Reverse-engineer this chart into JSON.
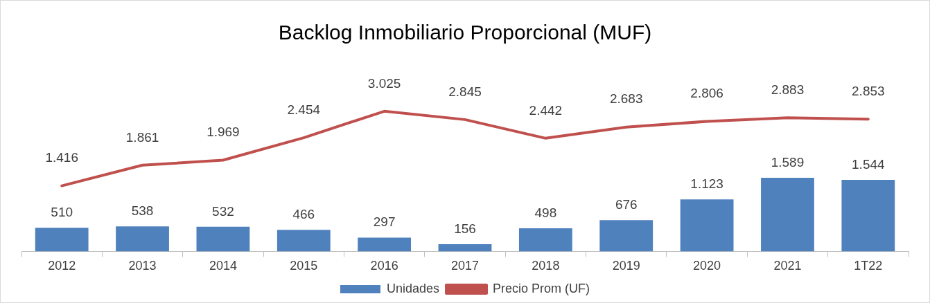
{
  "chart_data": {
    "type": "bar",
    "title": "Backlog Inmobiliario Proporcional (MUF)",
    "categories": [
      "2012",
      "2013",
      "2014",
      "2015",
      "2016",
      "2017",
      "2018",
      "2019",
      "2020",
      "2021",
      "1T22"
    ],
    "series": [
      {
        "name": "Unidades",
        "color": "#4f81bd",
        "values": [
          510,
          538,
          532,
          466,
          297,
          156,
          498,
          676,
          1123,
          1589,
          1544
        ],
        "value_labels": [
          "510",
          "538",
          "532",
          "466",
          "297",
          "156",
          "498",
          "676",
          "1.123",
          "1.589",
          "1.544"
        ]
      },
      {
        "name": "Precio Prom (UF)",
        "type": "line",
        "color": "#c0504d",
        "marker": "none",
        "values": [
          1416,
          1861,
          1969,
          2454,
          3025,
          2845,
          2442,
          2683,
          2806,
          2883,
          2853
        ],
        "value_labels": [
          "1.416",
          "1.861",
          "1.969",
          "2.454",
          "3.025",
          "2.845",
          "2.442",
          "2.683",
          "2.806",
          "2.883",
          "2.853"
        ]
      }
    ],
    "legend": "bottom",
    "grid": false,
    "tick_labels": "x"
  }
}
